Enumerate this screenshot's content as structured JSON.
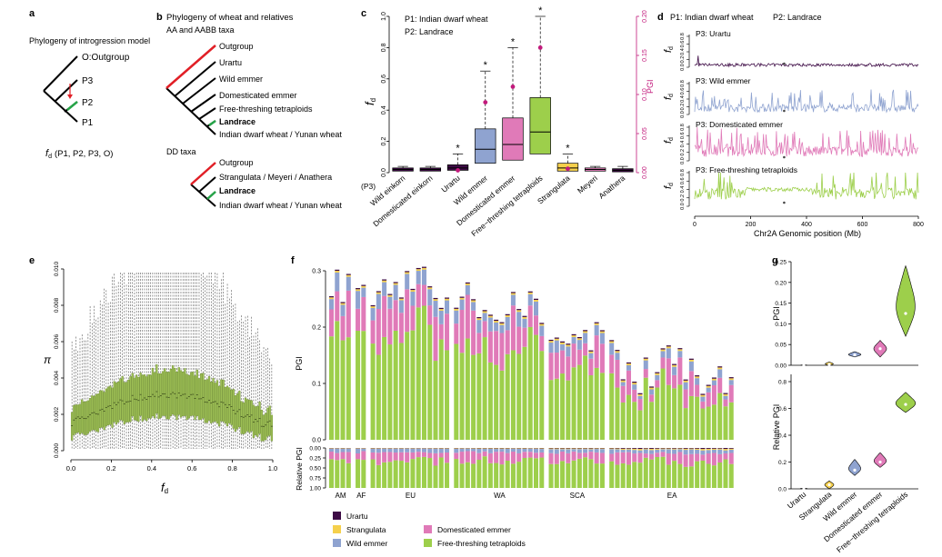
{
  "colors": {
    "urartu": "#3d0b45",
    "strangulata": "#f5d04c",
    "wild": "#8fa3d0",
    "dom": "#e07ab8",
    "ft": "#9dcf4b",
    "outgroup": "#e11f26",
    "green": "#26a448",
    "arrow": "#e11f26",
    "pgi": "#c21a7c",
    "box_e": "#6b8a2e",
    "einkorn": "#3d0b45",
    "meyeri": "#e07ab8",
    "anathera": "#3d0b45"
  },
  "panel_a": {
    "letter": "a",
    "title": "Phylogeny of introgression model",
    "leaves": [
      "O:Outgroup",
      "P3",
      "P2",
      "P1"
    ],
    "formula_f": "f",
    "formula_sub": "d",
    "formula_rest": "(P1, P2, P3, O)"
  },
  "panel_b": {
    "letter": "b",
    "title": "Phylogeny of wheat and relatives",
    "aa_title": "AA and AABB taxa",
    "aa_leaves": [
      "Outgroup",
      "Urartu",
      "Wild emmer",
      "Domesticated emmer",
      "Free-threshing tetraploids",
      "Landrace",
      "Indian dwarf wheat / Yunan wheat"
    ],
    "dd_title": "DD taxa",
    "dd_leaves": [
      "Outgroup",
      "Strangulata / Meyeri / Anathera",
      "Landrace",
      "Indian dwarf wheat / Yunan wheat"
    ]
  },
  "panel_c": {
    "letter": "c",
    "legend_p1": "P1: Indian dwarf wheat",
    "legend_p2": "P2: Landrace",
    "p3_label": "(P3)",
    "ylabel_f": "f",
    "ylabel_sub": "d",
    "ylabel_right": "PGI",
    "left_ticks": [
      "0.0",
      "0.2",
      "0.4",
      "0.6",
      "0.8",
      "1.0"
    ],
    "right_ticks": [
      "0.00",
      "0.05",
      "0.10",
      "0.15",
      "0.20"
    ],
    "categories": [
      "Wild einkorn",
      "Domesticated einkorn",
      "Urartu",
      "Wild emmer",
      "Domesticated emmer",
      "Free−threshing tetraploids",
      "Strangulata",
      "Meyeri",
      "Anathera"
    ],
    "star": "*"
  },
  "panel_d": {
    "letter": "d",
    "legend_p1": "P1: Indian dwarf wheat",
    "legend_p2": "P2: Landrace",
    "tracks": [
      "P3: Urartu",
      "P3: Wild emmer",
      "P3: Domesticated emmer",
      "P3: Free-threshing tetraploids"
    ],
    "ylabel_f": "f",
    "ylabel_sub": "d",
    "yticks": [
      "0.0",
      "0.2",
      "0.4",
      "0.6",
      "0.8"
    ],
    "xticks": [
      "0",
      "200",
      "400",
      "600",
      "800"
    ],
    "xlabel": "Chr2A Genomic position (Mb)"
  },
  "panel_e": {
    "letter": "e",
    "ylabel": "π",
    "xlabel_f": "f",
    "xlabel_sub": "d",
    "yticks": [
      "0.000",
      "0.002",
      "0.004",
      "0.006",
      "0.008",
      "0.010"
    ],
    "xticks": [
      "0.0",
      "0.2",
      "0.4",
      "0.6",
      "0.8",
      "1.0"
    ]
  },
  "panel_f": {
    "letter": "f",
    "ylabel": "PGI",
    "ylabel2": "Relative PGI",
    "yticks": [
      "0.0",
      "0.1",
      "0.2",
      "0.3"
    ],
    "yticks2": [
      "0.00",
      "0.25",
      "0.50",
      "0.75",
      "1.00"
    ],
    "groups": [
      "AM",
      "AF",
      "EU",
      "WA",
      "SCA",
      "EA"
    ],
    "legend": [
      "Urartu",
      "Strangulata",
      "Wild emmer",
      "Domesticated emmer",
      "Free-threshing tetraploids"
    ]
  },
  "panel_g": {
    "letter": "g",
    "ylabel": "PGI",
    "ylabel2": "Relative PGI",
    "yticks": [
      "0.00",
      "0.05",
      "0.10",
      "0.15",
      "0.20",
      "0.25"
    ],
    "yticks2": [
      "0.0",
      "0.2",
      "0.4",
      "0.6",
      "0.8"
    ],
    "categories": [
      "Urartu",
      "Strangulata",
      "Wild emmer",
      "Domesticated emmer",
      "Free−threshing tetraploids"
    ]
  },
  "chart_data": [
    {
      "panel": "c",
      "type": "box",
      "categories": [
        "Wild einkorn",
        "Domesticated einkorn",
        "Urartu",
        "Wild emmer",
        "Domesticated emmer",
        "Free−threshing tetraploids",
        "Strangulata",
        "Meyeri",
        "Anathera"
      ],
      "box": [
        [
          0,
          0.01,
          0.02,
          0.03,
          0.04
        ],
        [
          0,
          0.01,
          0.02,
          0.03,
          0.04
        ],
        [
          0,
          0.015,
          0.03,
          0.05,
          0.12
        ],
        [
          0,
          0.06,
          0.15,
          0.28,
          0.65
        ],
        [
          0,
          0.08,
          0.18,
          0.35,
          0.8
        ],
        [
          0,
          0.12,
          0.26,
          0.48,
          1.0
        ],
        [
          0,
          0.01,
          0.03,
          0.06,
          0.12
        ],
        [
          0,
          0.01,
          0.02,
          0.03,
          0.04
        ],
        [
          0,
          0.005,
          0.015,
          0.025,
          0.04
        ]
      ],
      "pgi": [
        null,
        null,
        0.003,
        0.09,
        0.11,
        0.16,
        0.005,
        null,
        null
      ],
      "stars": [
        false,
        false,
        true,
        true,
        true,
        true,
        true,
        false,
        false
      ],
      "ylim": [
        0,
        1
      ],
      "ylim_right": [
        0,
        0.2
      ]
    },
    {
      "panel": "d",
      "type": "line",
      "xlim": [
        0,
        800
      ],
      "ylim": [
        0,
        0.8
      ],
      "series": [
        {
          "name": "P3: Urartu",
          "level": 0.05,
          "amp": 0.1
        },
        {
          "name": "P3: Wild emmer",
          "level": 0.15,
          "amp": 0.6
        },
        {
          "name": "P3: Domesticated emmer",
          "level": 0.25,
          "amp": 0.7
        },
        {
          "name": "P3: Free-threshing tetraploids",
          "level": 0.4,
          "amp": 0.8
        }
      ]
    },
    {
      "panel": "e",
      "type": "box",
      "xlim": [
        0,
        1
      ],
      "ylim": [
        0,
        0.01
      ],
      "median_peak": 0.003,
      "q3_peak": 0.004,
      "whisker_peak": 0.0093
    },
    {
      "panel": "f",
      "type": "bar",
      "stacked": true,
      "series": [
        "Urartu",
        "Strangulata",
        "Wild emmer",
        "Domesticated emmer",
        "Free-threshing tetraploids"
      ],
      "ylim": [
        0,
        0.3
      ],
      "groups": [
        {
          "name": "AM",
          "count": 4
        },
        {
          "name": "AF",
          "count": 2
        },
        {
          "name": "EU",
          "count": 14
        },
        {
          "name": "WA",
          "count": 16
        },
        {
          "name": "SCA",
          "count": 10
        },
        {
          "name": "EA",
          "count": 22
        }
      ]
    },
    {
      "panel": "g",
      "type": "violin",
      "categories": [
        "Urartu",
        "Strangulata",
        "Wild emmer",
        "Domesticated emmer",
        "Free−threshing tetraploids"
      ],
      "pgi_median": [
        0.0,
        0.002,
        0.025,
        0.04,
        0.125
      ],
      "pgi_max": [
        0.001,
        0.008,
        0.033,
        0.06,
        0.24
      ],
      "pgi_min": [
        0,
        0,
        0.02,
        0.02,
        0.07
      ],
      "rel_median": [
        0.0,
        0.03,
        0.14,
        0.2,
        0.63
      ],
      "rel_max": [
        0.005,
        0.06,
        0.22,
        0.27,
        0.72
      ],
      "rel_min": [
        0,
        0,
        0.1,
        0.16,
        0.57
      ],
      "ylim": [
        0,
        0.25
      ],
      "ylim2": [
        0,
        0.8
      ]
    }
  ]
}
